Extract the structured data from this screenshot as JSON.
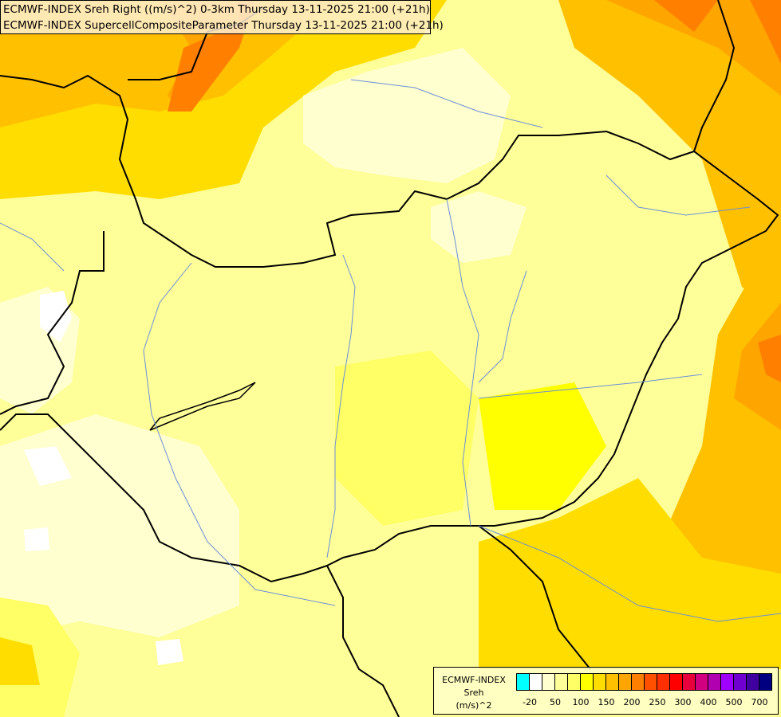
{
  "title": {
    "line1": "ECMWF-INDEX Sreh Right ((m/s)^2) 0-3km Thursday 13-11-2025 21:00 (+21h)",
    "line2": "ECMWF-INDEX SupercellCompositeParameter Thursday 13-11-2025 21:00 (+21h)"
  },
  "legend": {
    "model": "ECMWF-INDEX",
    "variable": "Sreh",
    "unit": "(m/s)^2",
    "colors": [
      "#00ffff",
      "#ffffff",
      "#ffffd0",
      "#ffff99",
      "#ffff66",
      "#ffff00",
      "#ffdd00",
      "#ffc000",
      "#ffa500",
      "#ff8000",
      "#ff5000",
      "#ff3000",
      "#ff0000",
      "#e8003c",
      "#d00080",
      "#b000b0",
      "#a000ff",
      "#7000d0",
      "#4000a0",
      "#000080"
    ],
    "labels": [
      "-20",
      "50",
      "100",
      "150",
      "200",
      "250",
      "300",
      "400",
      "500",
      "700"
    ]
  }
}
